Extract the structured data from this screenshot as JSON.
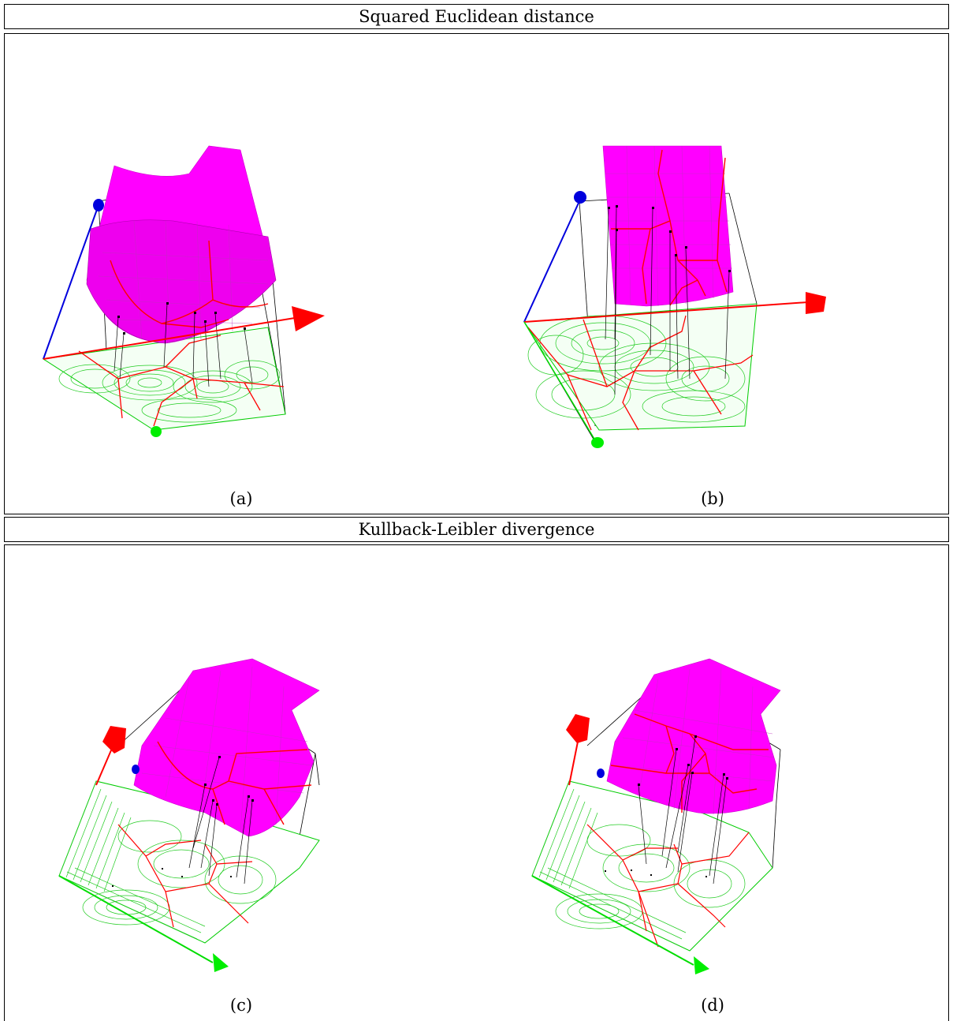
{
  "sections": [
    {
      "title": "Squared Euclidean distance",
      "captions": [
        "(a)",
        "(b)"
      ]
    },
    {
      "title": "Kullback-Leibler divergence",
      "captions": [
        "(c)",
        "(d)"
      ]
    }
  ],
  "colors": {
    "surface": "#ff00ff",
    "voronoi_edges": "#ff0000",
    "contours": "#00dd00",
    "axis_x": "#ff0000",
    "axis_y": "#00ee00",
    "axis_z": "#0000dd",
    "frame": "#000000"
  }
}
